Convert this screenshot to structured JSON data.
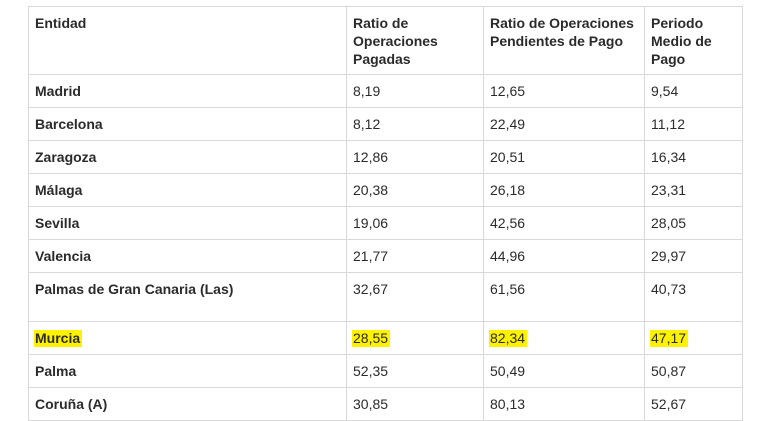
{
  "table": {
    "headers": [
      "Entidad",
      "Ratio de Operaciones Pagadas",
      "Ratio de Operaciones Pendientes de Pago",
      "Periodo Medio de Pago"
    ],
    "rows": [
      [
        "Madrid",
        "8,19",
        "12,65",
        "9,54"
      ],
      [
        "Barcelona",
        "8,12",
        "22,49",
        "11,12"
      ],
      [
        "Zaragoza",
        "12,86",
        "20,51",
        "16,34"
      ],
      [
        "Málaga",
        "20,38",
        "26,18",
        "23,31"
      ],
      [
        "Sevilla",
        "19,06",
        "42,56",
        "28,05"
      ],
      [
        "Valencia",
        "21,77",
        "44,96",
        "29,97"
      ],
      [
        "Palmas de Gran Canaria (Las)",
        "32,67",
        "61,56",
        "40,73"
      ],
      [
        "Murcia",
        "28,55",
        "82,34",
        "47,17"
      ],
      [
        "Palma",
        "52,35",
        "50,49",
        "50,87"
      ],
      [
        "Coruña (A)",
        "30,85",
        "80,13",
        "52,67"
      ]
    ],
    "highlighted_row": "Murcia",
    "highlight_color": "#fff200"
  }
}
